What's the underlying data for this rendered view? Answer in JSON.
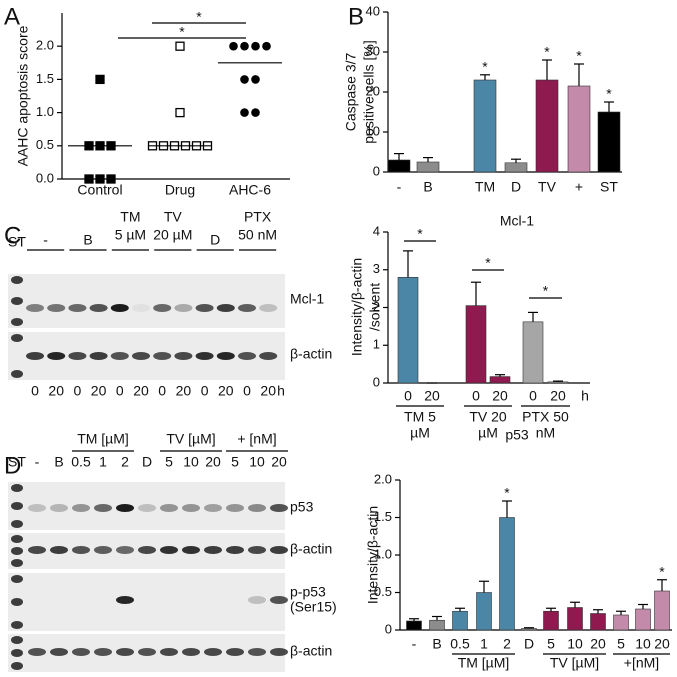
{
  "panel_labels": [
    "A",
    "B",
    "C",
    "D"
  ],
  "chart_data": [
    {
      "type": "dot",
      "ylabel": "AAHC apoptosis score",
      "categories": [
        "Control",
        "Drug",
        "AHC-6"
      ],
      "markers": [
        "square",
        "open-square",
        "circle"
      ],
      "color": "#000000",
      "values": [
        [
          1.5,
          0.5,
          0.5,
          0.5,
          0,
          0,
          0
        ],
        [
          2.0,
          1.0,
          0.5,
          0.5,
          0.5,
          0.5,
          0.5,
          0.5
        ],
        [
          2.0,
          2.0,
          2.0,
          2.0,
          1.5,
          1.5,
          1.0,
          1.0
        ]
      ],
      "medians": [
        0.5,
        0.5,
        1.75
      ],
      "significance": [
        "*",
        "*"
      ],
      "ylim": [
        0,
        2.5
      ],
      "yticks": [
        {
          "value": 0,
          "label": "0.0"
        },
        0.5,
        {
          "value": 1,
          "label": "1.0"
        },
        1.5,
        {
          "value": 2,
          "label": "2.0"
        }
      ]
    },
    {
      "type": "bar",
      "ylabel": [
        "Caspase 3/7",
        "positive cells [%]"
      ],
      "categories": [
        "-",
        "B",
        "TM",
        "D",
        "TV",
        "+",
        "ST"
      ],
      "values": [
        3,
        2.5,
        23,
        2.3,
        23,
        21.5,
        15
      ],
      "errors": [
        1.6,
        1.1,
        1.3,
        0.9,
        5,
        5.5,
        2.5
      ],
      "colors": [
        "#000000",
        "#8c8c8c",
        "#4b86a6",
        "#8c8c8c",
        "#8e1a4f",
        "#c48aa9",
        "#000000"
      ],
      "significance": [
        null,
        null,
        "*",
        null,
        "*",
        "*",
        "*"
      ],
      "ylim": [
        0,
        40
      ],
      "yticks": [
        0,
        10,
        20,
        30,
        40
      ]
    },
    {
      "type": "bar",
      "title": "Mcl-1",
      "ylabel": [
        "Intensity/β-actin",
        "/solvent"
      ],
      "categories": [
        "0",
        "20",
        "0",
        "20",
        "0",
        "20"
      ],
      "x_unit": "h",
      "group_labels": [
        [
          "TM 5",
          "µM"
        ],
        [
          "TV 20",
          "µM"
        ],
        [
          "PTX 50",
          "nM"
        ]
      ],
      "values": [
        2.8,
        0,
        2.05,
        0.17,
        1.62,
        0.03
      ],
      "errors": [
        0.7,
        0,
        0.62,
        0.05,
        0.25,
        0.02
      ],
      "colors": [
        "#4b86a6",
        "#4b86a6",
        "#8e1a4f",
        "#8e1a4f",
        "#a6a6a6",
        "#a6a6a6"
      ],
      "significance": [
        "*",
        "*",
        "*"
      ],
      "ylim": [
        0,
        4
      ],
      "yticks": [
        0,
        1,
        2,
        3,
        4
      ]
    },
    {
      "type": "bar",
      "title": "p53",
      "ylabel": [
        "Intensity/β-actin"
      ],
      "categories": [
        "-",
        "B",
        "0.5",
        "1",
        "2",
        "D",
        "5",
        "10",
        "20",
        "5",
        "10",
        "20"
      ],
      "group_labels": [
        "TM [µM]",
        "TV [µM]",
        "+[nM]"
      ],
      "values": [
        0.12,
        0.13,
        0.25,
        0.5,
        1.5,
        0.02,
        0.25,
        0.3,
        0.22,
        0.2,
        0.28,
        0.52
      ],
      "errors": [
        0.03,
        0.05,
        0.04,
        0.15,
        0.22,
        0.01,
        0.04,
        0.07,
        0.05,
        0.05,
        0.06,
        0.15
      ],
      "colors": [
        "#000000",
        "#8c8c8c",
        "#4b86a6",
        "#4b86a6",
        "#4b86a6",
        "#8c8c8c",
        "#8e1a4f",
        "#8e1a4f",
        "#8e1a4f",
        "#c48aa9",
        "#c48aa9",
        "#c48aa9"
      ],
      "significance": [
        null,
        null,
        null,
        null,
        "*",
        null,
        null,
        null,
        null,
        null,
        null,
        "*"
      ],
      "ylim": [
        0,
        2
      ],
      "yticks": [
        0,
        0.5,
        {
          "value": 1,
          "label": "1.0"
        },
        1.5,
        {
          "value": 2,
          "label": "2.0"
        }
      ]
    }
  ],
  "blot_c": {
    "ladder": "ST",
    "lanes": [
      "-",
      "B",
      [
        "TM",
        "5 µM"
      ],
      [
        "TV",
        "20 µM"
      ],
      "D",
      [
        "PTX",
        "50 nM"
      ]
    ],
    "rows": [
      "Mcl-1",
      "β-actin"
    ],
    "times": [
      "0",
      "20",
      "0",
      "20",
      "0",
      "20",
      "0",
      "20",
      "0",
      "20",
      "0",
      "20"
    ],
    "time_unit": "h"
  },
  "blot_d": {
    "ladder": "ST",
    "groups": [
      "TM [µM]",
      "TV [µM]",
      "+ [nM]"
    ],
    "lanes": [
      "-",
      "B",
      "0.5",
      "1",
      "2",
      "D",
      "5",
      "10",
      "20",
      "5",
      "10",
      "20"
    ],
    "rows": [
      "p53",
      "β-actin",
      [
        "p-p53",
        "(Ser15)"
      ],
      "β-actin"
    ]
  }
}
